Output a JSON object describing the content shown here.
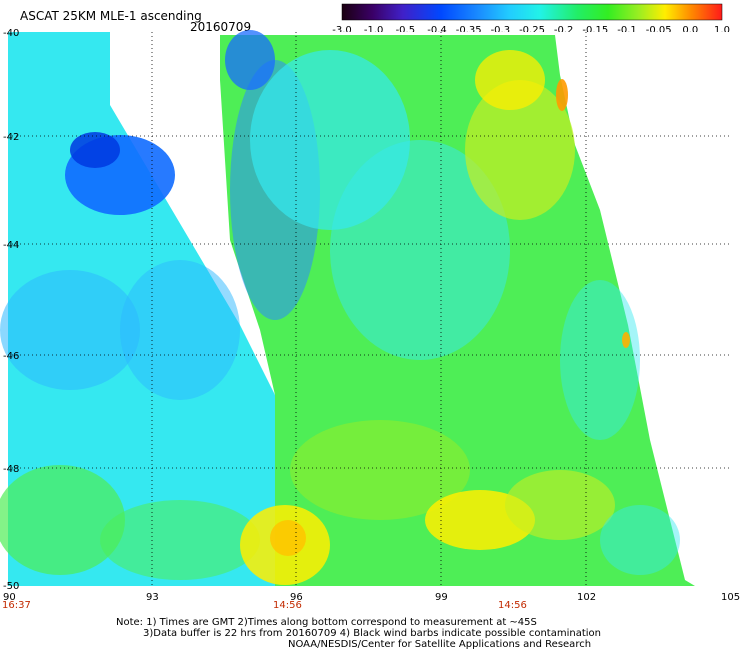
{
  "header": {
    "title": "ASCAT 25KM MLE-1 ascending",
    "date": "20160709"
  },
  "colorbar": {
    "labels": [
      "-3.0",
      "-1.0",
      "-0.5",
      "-0.4",
      "-0.35",
      "-0.3",
      "-0.25",
      "-0.2",
      "-0.15",
      "-0.1",
      "-0.05",
      "0.0",
      "1.0"
    ],
    "stops": [
      {
        "o": 0.0,
        "c": "#1a0010"
      },
      {
        "o": 0.08,
        "c": "#3a0066"
      },
      {
        "o": 0.16,
        "c": "#4020c8"
      },
      {
        "o": 0.26,
        "c": "#0048ff"
      },
      {
        "o": 0.36,
        "c": "#1a8cff"
      },
      {
        "o": 0.44,
        "c": "#22ccff"
      },
      {
        "o": 0.52,
        "c": "#22f2e8"
      },
      {
        "o": 0.62,
        "c": "#22ee66"
      },
      {
        "o": 0.7,
        "c": "#33ee22"
      },
      {
        "o": 0.78,
        "c": "#99ee22"
      },
      {
        "o": 0.85,
        "c": "#ffee00"
      },
      {
        "o": 0.92,
        "c": "#ff8800"
      },
      {
        "o": 1.0,
        "c": "#ff1a1a"
      }
    ]
  },
  "axes": {
    "lat_labels": [
      "-40",
      "-42",
      "-44",
      "-46",
      "-48",
      "-50"
    ],
    "lon_labels": [
      "90",
      "93",
      "96",
      "99",
      "102",
      "105"
    ],
    "time_labels": [
      "16:37",
      "14:56",
      "14:56"
    ]
  },
  "notes": {
    "line1": "Note: 1) Times are GMT 2)Times along bottom correspond to measurement at ~45S",
    "line2": "3)Data buffer is 22 hrs from 20160709 4) Black wind barbs indicate possible contamination",
    "line3": "NOAA/NESDIS/Center for Satellite Applications and Research"
  }
}
